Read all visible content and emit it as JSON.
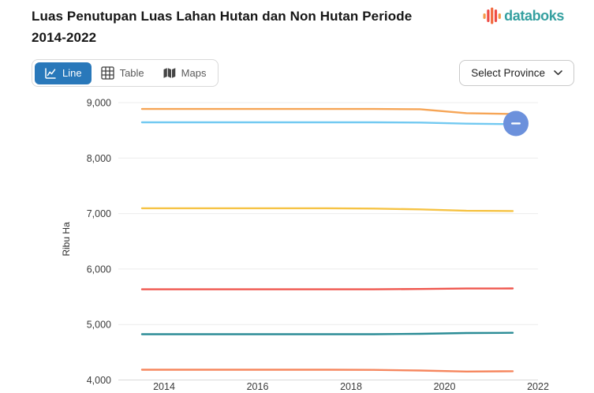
{
  "header": {
    "title_line1": "Luas Penutupan Luas Lahan Hutan dan Non Hutan Periode",
    "title_line2": "2014-2022",
    "brand": "databoks"
  },
  "toolbar": {
    "line_label": "Line",
    "table_label": "Table",
    "maps_label": "Maps",
    "active_view": "Line",
    "select_province_label": "Select Province"
  },
  "colors": {
    "active_view_bg": "#2978BA",
    "brand_teal": "#35A0A0",
    "logo_orange": "#F59A49",
    "logo_red": "#EE4B44",
    "grid": "#ececec",
    "axis_text": "#3a3a3a"
  },
  "chart_data": {
    "type": "line",
    "title": "Luas Penutupan Luas Lahan Hutan dan Non Hutan Periode 2014-2022",
    "ylabel": "Ribu Ha",
    "ylim": [
      4000,
      9000
    ],
    "grid": "horizontal",
    "legend_position": "none",
    "yticks": [
      {
        "value": 9000,
        "label": "9,000"
      },
      {
        "value": 8000,
        "label": "8,000"
      },
      {
        "value": 7000,
        "label": "7,000"
      },
      {
        "value": 6000,
        "label": "6,000"
      },
      {
        "value": 5000,
        "label": "5,000"
      },
      {
        "value": 4000,
        "label": "4,000"
      }
    ],
    "x": [
      2014,
      2015,
      2016,
      2017,
      2018,
      2019,
      2020,
      2021,
      2022
    ],
    "xtick_labels": [
      "2014",
      "2016",
      "2018",
      "2020",
      "2022"
    ],
    "series": [
      {
        "name": "orange",
        "color": "#F6A556",
        "values": [
          8885,
          8885,
          8885,
          8885,
          8885,
          8885,
          8880,
          8810,
          8795
        ]
      },
      {
        "name": "light-blue",
        "color": "#72C9F1",
        "values": [
          8645,
          8645,
          8645,
          8645,
          8645,
          8645,
          8640,
          8620,
          8612
        ]
      },
      {
        "name": "yellow",
        "color": "#F6C344",
        "values": [
          7095,
          7095,
          7095,
          7095,
          7095,
          7090,
          7075,
          7050,
          7045
        ]
      },
      {
        "name": "red",
        "color": "#EF574E",
        "values": [
          5635,
          5635,
          5635,
          5635,
          5635,
          5635,
          5640,
          5648,
          5650
        ]
      },
      {
        "name": "teal",
        "color": "#2B8C96",
        "values": [
          4825,
          4825,
          4825,
          4825,
          4825,
          4825,
          4832,
          4846,
          4850
        ]
      },
      {
        "name": "salmon",
        "color": "#F6875F",
        "values": [
          4185,
          4185,
          4185,
          4185,
          4185,
          4182,
          4170,
          4152,
          4158
        ]
      }
    ],
    "endpoint_marker": {
      "shape": "circle",
      "color": "#6C91DC",
      "glyph": "minus-dash",
      "attached_series": "light-blue"
    }
  }
}
